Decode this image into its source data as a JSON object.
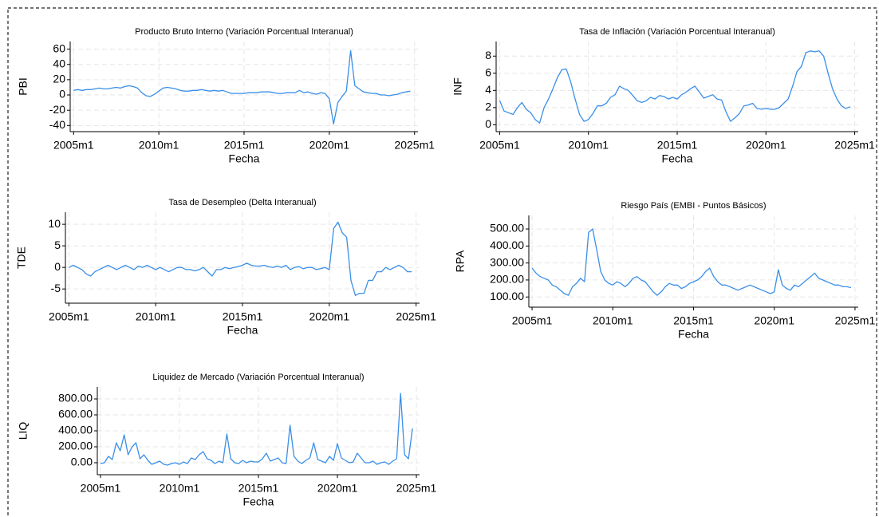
{
  "chart_data": [
    {
      "type": "line",
      "title": "Producto Bruto Interno (Variación Porcentual Interanual)",
      "ylabel": "PBI",
      "xlabel": "Fecha",
      "color": "#3a8fe8",
      "grid": true,
      "xlim": [
        2004.8,
        2025.2
      ],
      "ylim": [
        -48,
        70
      ],
      "xticks": [
        {
          "value": 2005,
          "label": "2005m1"
        },
        {
          "value": 2010,
          "label": "2010m1"
        },
        {
          "value": 2015,
          "label": "2015m1"
        },
        {
          "value": 2020,
          "label": "2020m1"
        },
        {
          "value": 2025,
          "label": "2025m1"
        }
      ],
      "yticks": [
        -40,
        -20,
        0,
        20,
        40,
        60
      ],
      "x": [
        2005,
        2005.25,
        2005.5,
        2005.75,
        2006,
        2006.25,
        2006.5,
        2006.75,
        2007,
        2007.25,
        2007.5,
        2007.75,
        2008,
        2008.25,
        2008.5,
        2008.75,
        2009,
        2009.25,
        2009.5,
        2009.75,
        2010,
        2010.25,
        2010.5,
        2010.75,
        2011,
        2011.25,
        2011.5,
        2011.75,
        2012,
        2012.25,
        2012.5,
        2012.75,
        2013,
        2013.25,
        2013.5,
        2013.75,
        2014,
        2014.25,
        2014.5,
        2014.75,
        2015,
        2015.25,
        2015.5,
        2015.75,
        2016,
        2016.25,
        2016.5,
        2016.75,
        2017,
        2017.25,
        2017.5,
        2017.75,
        2018,
        2018.25,
        2018.5,
        2018.75,
        2019,
        2019.25,
        2019.5,
        2019.75,
        2020,
        2020.25,
        2020.5,
        2020.75,
        2021,
        2021.25,
        2021.5,
        2021.75,
        2022,
        2022.25,
        2022.5,
        2022.75,
        2023,
        2023.25,
        2023.5,
        2023.75,
        2024,
        2024.25,
        2024.5,
        2024.75
      ],
      "values": [
        6,
        7,
        6,
        7,
        7,
        8,
        9,
        8,
        8,
        9,
        10,
        9,
        11,
        12,
        11,
        9,
        3,
        -1,
        -2,
        1,
        5,
        9,
        10,
        9,
        8,
        6,
        5,
        5,
        6,
        6,
        7,
        6,
        5,
        6,
        5,
        6,
        4,
        2,
        2,
        2,
        2,
        3,
        3,
        3,
        4,
        4,
        4,
        3,
        2,
        2,
        3,
        3,
        3,
        6,
        3,
        4,
        2,
        1,
        3,
        2,
        -5,
        -38,
        -10,
        -2,
        5,
        58,
        12,
        8,
        4,
        3,
        2,
        2,
        0,
        0,
        -1,
        0,
        1,
        3,
        4,
        5
      ]
    },
    {
      "type": "line",
      "title": "Tasa de Inflación (Variación Porcentual Interanual)",
      "ylabel": "INF",
      "xlabel": "Fecha",
      "color": "#3a8fe8",
      "grid": true,
      "xlim": [
        2004.8,
        2025.2
      ],
      "ylim": [
        -0.8,
        9.7
      ],
      "xticks": [
        {
          "value": 2005,
          "label": "2005m1"
        },
        {
          "value": 2010,
          "label": "2010m1"
        },
        {
          "value": 2015,
          "label": "2015m1"
        },
        {
          "value": 2020,
          "label": "2020m1"
        },
        {
          "value": 2025,
          "label": "2025m1"
        }
      ],
      "yticks": [
        0,
        2,
        4,
        6,
        8
      ],
      "x": [
        2005,
        2005.25,
        2005.5,
        2005.75,
        2006,
        2006.25,
        2006.5,
        2006.75,
        2007,
        2007.25,
        2007.5,
        2007.75,
        2008,
        2008.25,
        2008.5,
        2008.75,
        2009,
        2009.25,
        2009.5,
        2009.75,
        2010,
        2010.25,
        2010.5,
        2010.75,
        2011,
        2011.25,
        2011.5,
        2011.75,
        2012,
        2012.25,
        2012.5,
        2012.75,
        2013,
        2013.25,
        2013.5,
        2013.75,
        2014,
        2014.25,
        2014.5,
        2014.75,
        2015,
        2015.25,
        2015.5,
        2015.75,
        2016,
        2016.25,
        2016.5,
        2016.75,
        2017,
        2017.25,
        2017.5,
        2017.75,
        2018,
        2018.25,
        2018.5,
        2018.75,
        2019,
        2019.25,
        2019.5,
        2019.75,
        2020,
        2020.25,
        2020.5,
        2020.75,
        2021,
        2021.25,
        2021.5,
        2021.75,
        2022,
        2022.25,
        2022.5,
        2022.75,
        2023,
        2023.25,
        2023.5,
        2023.75,
        2024,
        2024.25,
        2024.5,
        2024.75
      ],
      "values": [
        2.8,
        1.6,
        1.4,
        1.2,
        2.0,
        2.6,
        1.8,
        1.4,
        0.6,
        0.2,
        2.0,
        3.0,
        4.2,
        5.5,
        6.4,
        6.5,
        5.0,
        3.0,
        1.2,
        0.4,
        0.6,
        1.3,
        2.2,
        2.2,
        2.5,
        3.2,
        3.5,
        4.5,
        4.2,
        4.0,
        3.4,
        2.8,
        2.6,
        2.8,
        3.2,
        3.0,
        3.4,
        3.3,
        3.0,
        3.2,
        3.0,
        3.5,
        3.8,
        4.2,
        4.5,
        3.8,
        3.1,
        3.3,
        3.5,
        3.0,
        2.9,
        1.5,
        0.4,
        0.8,
        1.3,
        2.2,
        2.3,
        2.5,
        1.9,
        1.8,
        1.9,
        1.8,
        1.8,
        2.0,
        2.5,
        3.0,
        4.5,
        6.2,
        6.8,
        8.4,
        8.6,
        8.5,
        8.6,
        8.0,
        6.0,
        4.2,
        3.0,
        2.2,
        1.9,
        2.1
      ]
    },
    {
      "type": "line",
      "title": "Tasa de Desempleo (Delta Interanual)",
      "ylabel": "TDE",
      "xlabel": "Fecha",
      "color": "#3a8fe8",
      "grid": true,
      "xlim": [
        2004.8,
        2025.2
      ],
      "ylim": [
        -8.3,
        12.8
      ],
      "xticks": [
        {
          "value": 2005,
          "label": "2005m1"
        },
        {
          "value": 2010,
          "label": "2010m1"
        },
        {
          "value": 2015,
          "label": "2015m1"
        },
        {
          "value": 2020,
          "label": "2020m1"
        },
        {
          "value": 2025,
          "label": "2025m1"
        }
      ],
      "yticks": [
        -5,
        0,
        5,
        10
      ],
      "x": [
        2005,
        2005.25,
        2005.5,
        2005.75,
        2006,
        2006.25,
        2006.5,
        2006.75,
        2007,
        2007.25,
        2007.5,
        2007.75,
        2008,
        2008.25,
        2008.5,
        2008.75,
        2009,
        2009.25,
        2009.5,
        2009.75,
        2010,
        2010.25,
        2010.5,
        2010.75,
        2011,
        2011.25,
        2011.5,
        2011.75,
        2012,
        2012.25,
        2012.5,
        2012.75,
        2013,
        2013.25,
        2013.5,
        2013.75,
        2014,
        2014.25,
        2014.5,
        2014.75,
        2015,
        2015.25,
        2015.5,
        2015.75,
        2016,
        2016.25,
        2016.5,
        2016.75,
        2017,
        2017.25,
        2017.5,
        2017.75,
        2018,
        2018.25,
        2018.5,
        2018.75,
        2019,
        2019.25,
        2019.5,
        2019.75,
        2020,
        2020.25,
        2020.5,
        2020.75,
        2021,
        2021.25,
        2021.5,
        2021.75,
        2022,
        2022.25,
        2022.5,
        2022.75,
        2023,
        2023.25,
        2023.5,
        2023.75,
        2024,
        2024.25,
        2024.5,
        2024.75
      ],
      "values": [
        0,
        0.5,
        0,
        -0.5,
        -1.5,
        -2,
        -1,
        -0.5,
        0,
        0.5,
        0,
        -0.5,
        0,
        0.5,
        0,
        -0.5,
        0.3,
        0,
        0.5,
        0,
        -0.5,
        0,
        -0.5,
        -1,
        -0.5,
        0,
        0,
        -0.5,
        -0.5,
        -0.8,
        -0.5,
        0,
        -1,
        -2,
        -0.5,
        -0.5,
        0,
        -0.3,
        0,
        0.2,
        0.5,
        1,
        0.5,
        0.3,
        0.3,
        0.5,
        0.2,
        0,
        0.3,
        0,
        0.5,
        -0.5,
        0,
        0.2,
        -0.3,
        0,
        0,
        -0.5,
        -0.3,
        0,
        -0.5,
        9,
        10.5,
        8,
        7,
        -3,
        -6.5,
        -6,
        -6,
        -3,
        -3,
        -1,
        -1,
        0,
        -0.5,
        0,
        0.5,
        0,
        -1,
        -1
      ]
    },
    {
      "type": "line",
      "title": "Riesgo País (EMBI - Puntos Básicos)",
      "ylabel": "RPA",
      "xlabel": "Fecha",
      "color": "#3a8fe8",
      "grid": true,
      "xlim": [
        2004.8,
        2025.2
      ],
      "ylim": [
        40,
        580
      ],
      "xticks": [
        {
          "value": 2005,
          "label": "2005m1"
        },
        {
          "value": 2010,
          "label": "2010m1"
        },
        {
          "value": 2015,
          "label": "2015m1"
        },
        {
          "value": 2020,
          "label": "2020m1"
        },
        {
          "value": 2025,
          "label": "2025m1"
        }
      ],
      "yticks": [
        {
          "value": 100,
          "label": "100.00"
        },
        {
          "value": 200,
          "label": "200.00"
        },
        {
          "value": 300,
          "label": "300.00"
        },
        {
          "value": 400,
          "label": "400.00"
        },
        {
          "value": 500,
          "label": "500.00"
        }
      ],
      "x": [
        2005,
        2005.25,
        2005.5,
        2005.75,
        2006,
        2006.25,
        2006.5,
        2006.75,
        2007,
        2007.25,
        2007.5,
        2007.75,
        2008,
        2008.25,
        2008.5,
        2008.75,
        2009,
        2009.25,
        2009.5,
        2009.75,
        2010,
        2010.25,
        2010.5,
        2010.75,
        2011,
        2011.25,
        2011.5,
        2011.75,
        2012,
        2012.25,
        2012.5,
        2012.75,
        2013,
        2013.25,
        2013.5,
        2013.75,
        2014,
        2014.25,
        2014.5,
        2014.75,
        2015,
        2015.25,
        2015.5,
        2015.75,
        2016,
        2016.25,
        2016.5,
        2016.75,
        2017,
        2017.25,
        2017.5,
        2017.75,
        2018,
        2018.25,
        2018.5,
        2018.75,
        2019,
        2019.25,
        2019.5,
        2019.75,
        2020,
        2020.25,
        2020.5,
        2020.75,
        2021,
        2021.25,
        2021.5,
        2021.75,
        2022,
        2022.25,
        2022.5,
        2022.75,
        2023,
        2023.25,
        2023.5,
        2023.75,
        2024,
        2024.25,
        2024.5,
        2024.75
      ],
      "values": [
        270,
        240,
        220,
        210,
        200,
        170,
        160,
        140,
        120,
        110,
        160,
        180,
        210,
        190,
        480,
        500,
        380,
        250,
        200,
        180,
        170,
        190,
        180,
        160,
        180,
        210,
        220,
        200,
        190,
        160,
        130,
        110,
        130,
        160,
        180,
        170,
        170,
        150,
        160,
        180,
        190,
        200,
        220,
        250,
        270,
        220,
        190,
        170,
        170,
        160,
        150,
        140,
        150,
        160,
        170,
        160,
        150,
        140,
        130,
        120,
        130,
        260,
        170,
        150,
        140,
        170,
        160,
        180,
        200,
        220,
        240,
        210,
        200,
        190,
        180,
        170,
        170,
        160,
        160,
        155
      ]
    },
    {
      "type": "line",
      "title": "Liquidez de Mercado (Variación Porcentual Interanual)",
      "ylabel": "LIQ",
      "xlabel": "Fecha",
      "color": "#3a8fe8",
      "grid": true,
      "xlim": [
        2004.8,
        2025.2
      ],
      "ylim": [
        -150,
        950
      ],
      "xticks": [
        {
          "value": 2005,
          "label": "2005m1"
        },
        {
          "value": 2010,
          "label": "2010m1"
        },
        {
          "value": 2015,
          "label": "2015m1"
        },
        {
          "value": 2020,
          "label": "2020m1"
        },
        {
          "value": 2025,
          "label": "2025m1"
        }
      ],
      "yticks": [
        {
          "value": 0,
          "label": "0.00"
        },
        {
          "value": 200,
          "label": "200.00"
        },
        {
          "value": 400,
          "label": "400.00"
        },
        {
          "value": 600,
          "label": "600.00"
        },
        {
          "value": 800,
          "label": "800.00"
        }
      ],
      "x": [
        2005,
        2005.25,
        2005.5,
        2005.75,
        2006,
        2006.25,
        2006.5,
        2006.75,
        2007,
        2007.25,
        2007.5,
        2007.75,
        2008,
        2008.25,
        2008.5,
        2008.75,
        2009,
        2009.25,
        2009.5,
        2009.75,
        2010,
        2010.25,
        2010.5,
        2010.75,
        2011,
        2011.25,
        2011.5,
        2011.75,
        2012,
        2012.25,
        2012.5,
        2012.75,
        2013,
        2013.25,
        2013.5,
        2013.75,
        2014,
        2014.25,
        2014.5,
        2014.75,
        2015,
        2015.25,
        2015.5,
        2015.75,
        2016,
        2016.25,
        2016.5,
        2016.75,
        2017,
        2017.25,
        2017.5,
        2017.75,
        2018,
        2018.25,
        2018.5,
        2018.75,
        2019,
        2019.25,
        2019.5,
        2019.75,
        2020,
        2020.25,
        2020.5,
        2020.75,
        2021,
        2021.25,
        2021.5,
        2021.75,
        2022,
        2022.25,
        2022.5,
        2022.75,
        2023,
        2023.25,
        2023.5,
        2023.75,
        2024,
        2024.25,
        2024.5,
        2024.75
      ],
      "values": [
        -10,
        0,
        80,
        40,
        250,
        150,
        350,
        100,
        200,
        250,
        50,
        100,
        30,
        -20,
        0,
        20,
        -20,
        -30,
        -10,
        0,
        -20,
        10,
        -10,
        60,
        40,
        100,
        140,
        50,
        30,
        -10,
        20,
        0,
        360,
        50,
        0,
        -10,
        30,
        0,
        20,
        10,
        10,
        50,
        120,
        20,
        40,
        60,
        0,
        -10,
        470,
        80,
        20,
        -10,
        30,
        60,
        250,
        40,
        20,
        0,
        80,
        30,
        240,
        60,
        30,
        0,
        10,
        120,
        60,
        0,
        0,
        20,
        -20,
        0,
        10,
        -20,
        20,
        50,
        870,
        100,
        50,
        430
      ]
    }
  ]
}
